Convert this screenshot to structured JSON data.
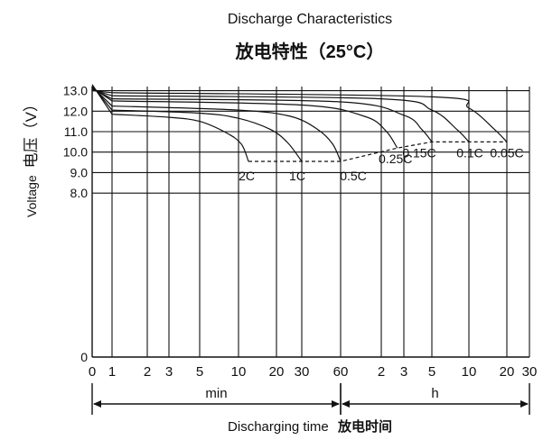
{
  "chart_data": {
    "type": "line",
    "title": "Discharge Characteristics",
    "subtitle": "放电特性（25°C）",
    "ylabel_en": "Voltage",
    "ylabel_cn": "电压（V）",
    "xlabel_en": "Discharging time",
    "xlabel_cn": "放电时间",
    "ylim": [
      0,
      13.2
    ],
    "y_ticks": [
      "0",
      "8.0",
      "9.0",
      "10.0",
      "11.0",
      "12.0",
      "13.0"
    ],
    "x_segments": [
      {
        "unit": "min",
        "start": 0,
        "end": 60
      },
      {
        "unit": "h",
        "start": 1,
        "end": 30
      }
    ],
    "x_ticks": [
      {
        "label": "0",
        "min": 0
      },
      {
        "label": "1",
        "min": 1
      },
      {
        "label": "2",
        "min": 2
      },
      {
        "label": "3",
        "min": 3
      },
      {
        "label": "5",
        "min": 5
      },
      {
        "label": "10",
        "min": 10
      },
      {
        "label": "20",
        "min": 20
      },
      {
        "label": "30",
        "min": 30
      },
      {
        "label": "60",
        "min": 60
      },
      {
        "label": "2",
        "min": 120
      },
      {
        "label": "3",
        "min": 180
      },
      {
        "label": "5",
        "min": 300
      },
      {
        "label": "10",
        "min": 600
      },
      {
        "label": "20",
        "min": 1200
      },
      {
        "label": "30",
        "min": 1800
      }
    ],
    "series": [
      {
        "name": "2C",
        "points": [
          [
            0,
            13.3
          ],
          [
            1,
            11.85
          ],
          [
            3,
            11.7
          ],
          [
            5,
            11.5
          ],
          [
            8,
            10.95
          ],
          [
            10.5,
            10.4
          ],
          [
            12,
            9.55
          ]
        ]
      },
      {
        "name": "1C",
        "points": [
          [
            0,
            13.25
          ],
          [
            1,
            12.05
          ],
          [
            5,
            11.9
          ],
          [
            10,
            11.65
          ],
          [
            18,
            11.1
          ],
          [
            24,
            10.45
          ],
          [
            30,
            9.55
          ]
        ]
      },
      {
        "name": "0.5C",
        "points": [
          [
            0,
            13.2
          ],
          [
            1,
            12.25
          ],
          [
            10,
            12.05
          ],
          [
            25,
            11.75
          ],
          [
            40,
            11.1
          ],
          [
            52,
            10.4
          ],
          [
            60,
            9.55
          ]
        ]
      },
      {
        "name": "0.25C",
        "points": [
          [
            0,
            13.15
          ],
          [
            1,
            12.5
          ],
          [
            30,
            12.3
          ],
          [
            90,
            11.75
          ],
          [
            130,
            11.05
          ],
          [
            160,
            10.2
          ]
        ]
      },
      {
        "name": "0.15C",
        "points": [
          [
            0,
            13.1
          ],
          [
            1,
            12.6
          ],
          [
            60,
            12.45
          ],
          [
            180,
            11.8
          ],
          [
            250,
            11.1
          ],
          [
            300,
            10.5
          ]
        ]
      },
      {
        "name": "0.1C",
        "points": [
          [
            0,
            13.05
          ],
          [
            1,
            12.75
          ],
          [
            120,
            12.6
          ],
          [
            300,
            12.05
          ],
          [
            480,
            11.1
          ],
          [
            600,
            10.5
          ]
        ]
      },
      {
        "name": "0.05C",
        "points": [
          [
            0,
            13.0
          ],
          [
            1,
            12.9
          ],
          [
            300,
            12.7
          ],
          [
            600,
            12.15
          ],
          [
            960,
            11.1
          ],
          [
            1200,
            10.5
          ]
        ]
      }
    ],
    "cutoff_points": [
      [
        12,
        9.55
      ],
      [
        30,
        9.55
      ],
      [
        60,
        9.55
      ],
      [
        160,
        10.2
      ],
      [
        300,
        10.5
      ],
      [
        600,
        10.5
      ],
      [
        1200,
        10.5
      ]
    ],
    "grid": true,
    "legend": "inline labels at curve ends"
  }
}
